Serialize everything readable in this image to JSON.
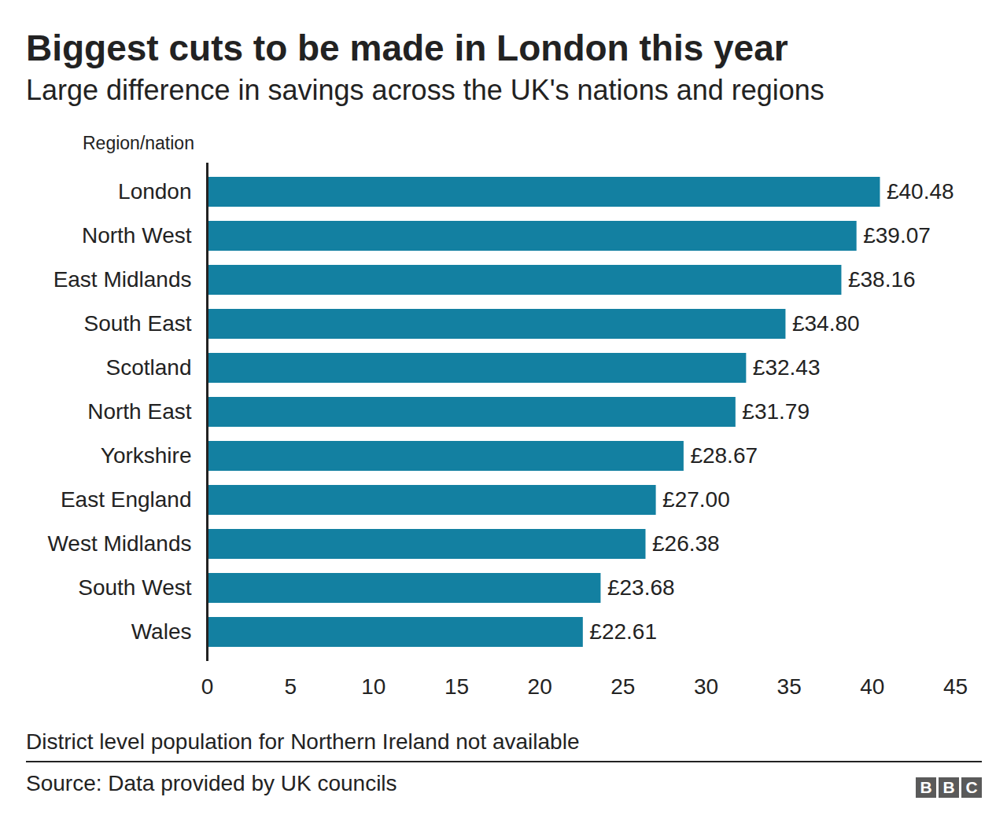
{
  "chart_data": {
    "type": "bar",
    "orientation": "horizontal",
    "title": "Biggest cuts to be made in London this year",
    "subtitle": "Large difference in savings across the UK's nations and regions",
    "y_label": "Region/nation",
    "categories": [
      "London",
      "North West",
      "East Midlands",
      "South East",
      "Scotland",
      "North East",
      "Yorkshire",
      "East England",
      "West Midlands",
      "South West",
      "Wales"
    ],
    "values": [
      40.48,
      39.07,
      38.16,
      34.8,
      32.43,
      31.79,
      28.67,
      27.0,
      26.38,
      23.68,
      22.61
    ],
    "value_labels": [
      "£40.48",
      "£39.07",
      "£38.16",
      "£34.80",
      "£32.43",
      "£31.79",
      "£28.67",
      "£27.00",
      "£26.38",
      "£23.68",
      "£22.61"
    ],
    "data_labels": true,
    "color": "#1380a1",
    "xlim": [
      0,
      45
    ],
    "xticks": [
      0,
      5,
      10,
      15,
      20,
      25,
      30,
      35,
      40,
      45
    ],
    "grid": false,
    "note": "District level population for Northern Ireland not available",
    "source": "Source: Data provided by UK councils",
    "logo": "BBC"
  }
}
